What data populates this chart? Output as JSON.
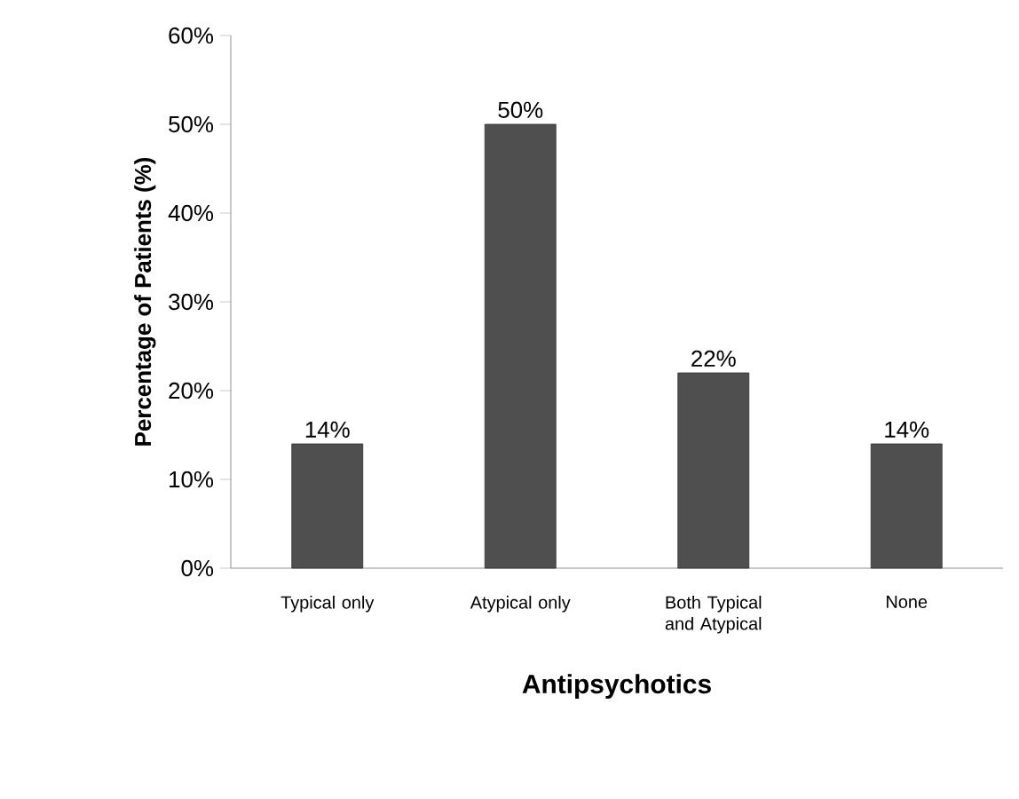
{
  "chart_data": {
    "type": "bar",
    "xlabel": "Antipsychotics",
    "ylabel": "Percentage of Patients (%)",
    "categories": [
      "Typical only",
      "Atypical only",
      "Both Typical and Atypical",
      "None"
    ],
    "values": [
      14,
      50,
      22,
      14
    ],
    "value_labels": [
      "14%",
      "50%",
      "22%",
      "14%"
    ],
    "color": "#4f4f4f",
    "ylim": [
      0,
      60
    ],
    "yticks": [
      {
        "value": 0,
        "label": "0%"
      },
      {
        "value": 10,
        "label": "10%"
      },
      {
        "value": 20,
        "label": "20%"
      },
      {
        "value": 30,
        "label": "30%"
      },
      {
        "value": 40,
        "label": "40%"
      },
      {
        "value": 50,
        "label": "50%"
      },
      {
        "value": 60,
        "label": "60%"
      }
    ],
    "grid": false
  }
}
